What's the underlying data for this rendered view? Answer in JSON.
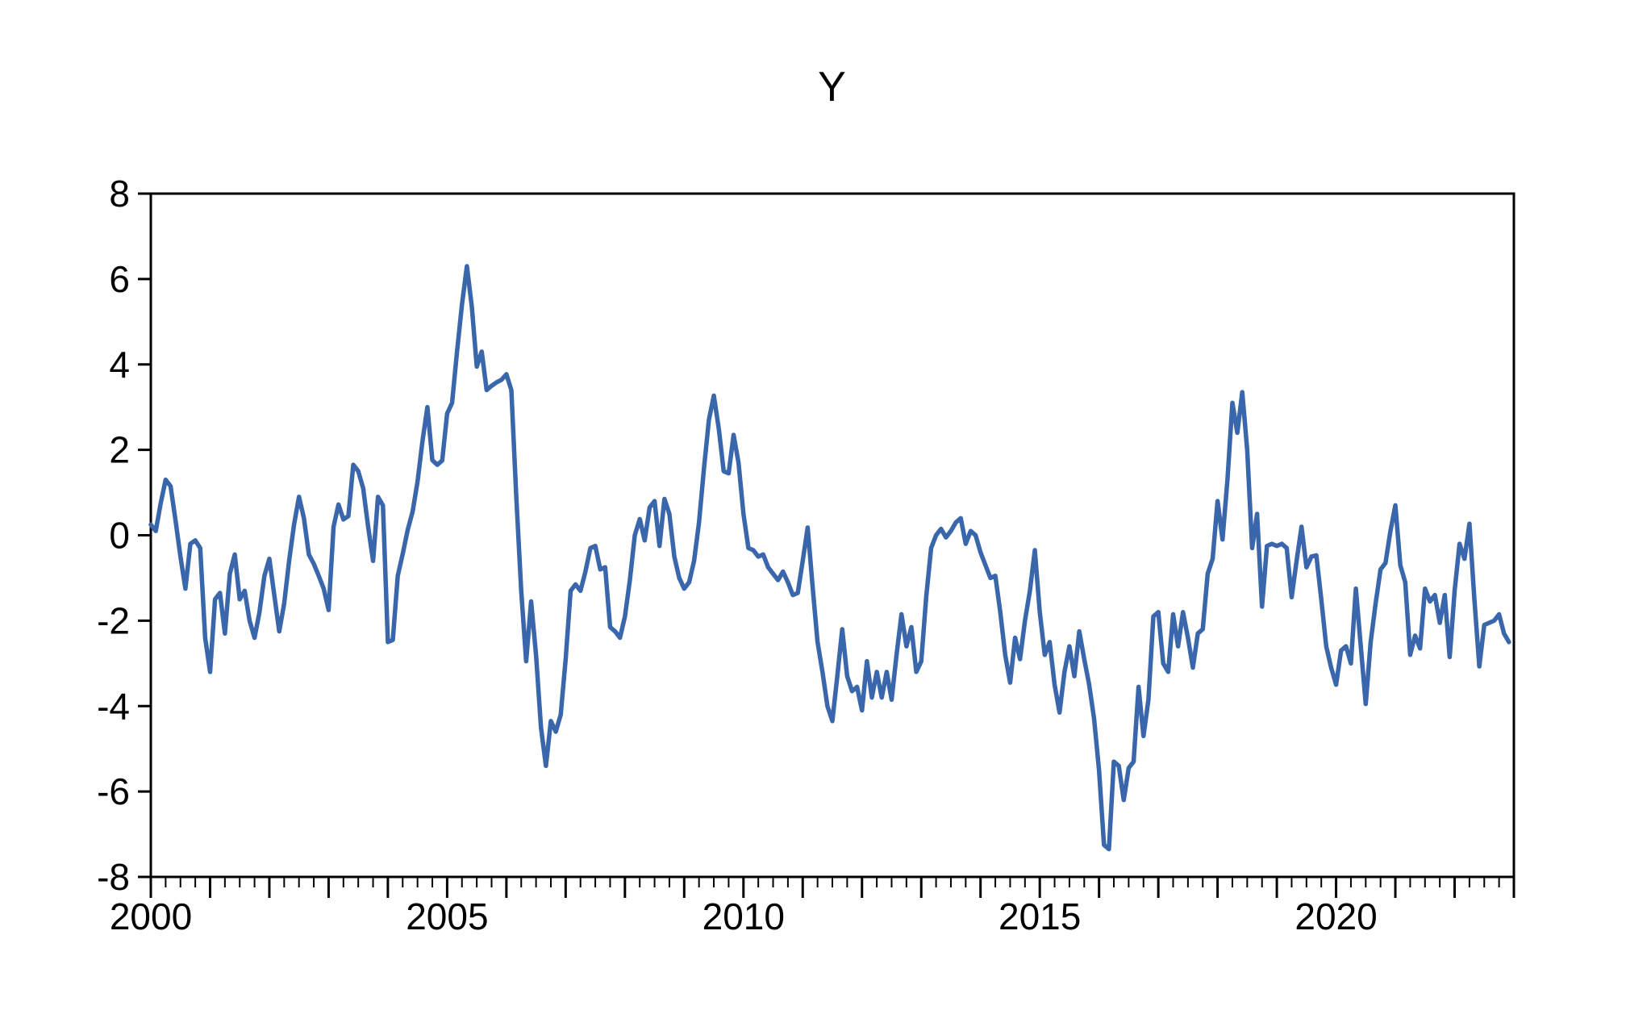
{
  "page": {
    "background_color": "#ffffff"
  },
  "chart_data": {
    "type": "line",
    "title": "Y",
    "xlabel": "",
    "ylabel": "",
    "legend": "none",
    "grid": "off",
    "frame": "box",
    "axis_color": "#000000",
    "line_color": "#3A66AC",
    "line_width": 5.5,
    "x_range": [
      2000,
      2023
    ],
    "y_range": [
      -8,
      8
    ],
    "y_ticks": [
      8,
      6,
      4,
      2,
      0,
      -2,
      -4,
      -6,
      -8
    ],
    "x_major_tick_interval_years": 1,
    "x_minor_tick_interval_years": 0.25,
    "x_labeled_ticks": [
      2000,
      2005,
      2010,
      2015,
      2020
    ],
    "series": [
      {
        "name": "Y",
        "frequency": "monthly",
        "start": 2000,
        "values": [
          0.25,
          0.1,
          0.75,
          1.3,
          1.15,
          0.35,
          -0.5,
          -1.25,
          -0.2,
          -0.12,
          -0.3,
          -2.4,
          -3.2,
          -1.5,
          -1.35,
          -2.3,
          -0.9,
          -0.45,
          -1.5,
          -1.3,
          -2.0,
          -2.4,
          -1.8,
          -0.95,
          -0.55,
          -1.4,
          -2.25,
          -1.6,
          -0.6,
          0.25,
          0.9,
          0.4,
          -0.45,
          -0.67,
          -0.95,
          -1.25,
          -1.75,
          0.2,
          0.72,
          0.37,
          0.45,
          1.65,
          1.5,
          1.1,
          0.2,
          -0.6,
          0.9,
          0.7,
          -2.5,
          -2.45,
          -0.95,
          -0.44,
          0.12,
          0.55,
          1.25,
          2.2,
          3.0,
          1.76,
          1.65,
          1.75,
          2.85,
          3.1,
          4.3,
          5.4,
          6.3,
          5.35,
          3.95,
          4.3,
          3.4,
          3.5,
          3.58,
          3.64,
          3.77,
          3.4,
          0.9,
          -1.3,
          -2.95,
          -1.55,
          -2.8,
          -4.5,
          -5.4,
          -4.35,
          -4.6,
          -4.2,
          -2.9,
          -1.3,
          -1.15,
          -1.3,
          -0.85,
          -0.3,
          -0.25,
          -0.8,
          -0.75,
          -2.15,
          -2.25,
          -2.4,
          -1.9,
          -1.05,
          0.0,
          0.38,
          -0.12,
          0.65,
          0.8,
          -0.25,
          0.85,
          0.5,
          -0.5,
          -1.0,
          -1.25,
          -1.1,
          -0.6,
          0.3,
          1.56,
          2.7,
          3.27,
          2.5,
          1.5,
          1.45,
          2.35,
          1.7,
          0.5,
          -0.3,
          -0.35,
          -0.5,
          -0.45,
          -0.75,
          -0.9,
          -1.05,
          -0.85,
          -1.1,
          -1.4,
          -1.35,
          -0.6,
          0.18,
          -1.2,
          -2.5,
          -3.2,
          -4.0,
          -4.35,
          -3.3,
          -2.2,
          -3.3,
          -3.65,
          -3.55,
          -4.1,
          -2.95,
          -3.8,
          -3.2,
          -3.8,
          -3.2,
          -3.85,
          -2.8,
          -1.85,
          -2.6,
          -2.15,
          -3.2,
          -2.95,
          -1.45,
          -0.3,
          0.0,
          0.15,
          -0.05,
          0.1,
          0.3,
          0.4,
          -0.2,
          0.1,
          0.0,
          -0.4,
          -0.7,
          -1.0,
          -0.95,
          -1.8,
          -2.8,
          -3.45,
          -2.4,
          -2.9,
          -2.0,
          -1.3,
          -0.35,
          -1.8,
          -2.8,
          -2.5,
          -3.5,
          -4.15,
          -3.2,
          -2.6,
          -3.3,
          -2.25,
          -2.9,
          -3.5,
          -4.3,
          -5.5,
          -7.25,
          -7.35,
          -5.3,
          -5.4,
          -6.2,
          -5.45,
          -5.3,
          -3.55,
          -4.7,
          -3.85,
          -1.9,
          -1.8,
          -3.0,
          -3.2,
          -1.85,
          -2.6,
          -1.8,
          -2.4,
          -3.1,
          -2.3,
          -2.2,
          -0.9,
          -0.55,
          0.8,
          -0.1,
          1.3,
          3.1,
          2.4,
          3.35,
          2.0,
          -0.3,
          0.5,
          -1.67,
          -0.25,
          -0.2,
          -0.25,
          -0.2,
          -0.3,
          -1.45,
          -0.6,
          0.2,
          -0.75,
          -0.5,
          -0.47,
          -1.5,
          -2.6,
          -3.1,
          -3.5,
          -2.7,
          -2.6,
          -3.0,
          -1.25,
          -2.6,
          -3.95,
          -2.5,
          -1.6,
          -0.8,
          -0.65,
          0.1,
          0.7,
          -0.7,
          -1.1,
          -2.8,
          -2.35,
          -2.65,
          -1.25,
          -1.55,
          -1.4,
          -2.05,
          -1.4,
          -2.85,
          -1.3,
          -0.2,
          -0.55,
          0.27,
          -1.5,
          -3.07,
          -2.1,
          -2.05,
          -2.0,
          -1.85,
          -2.3,
          -2.5
        ]
      }
    ]
  }
}
